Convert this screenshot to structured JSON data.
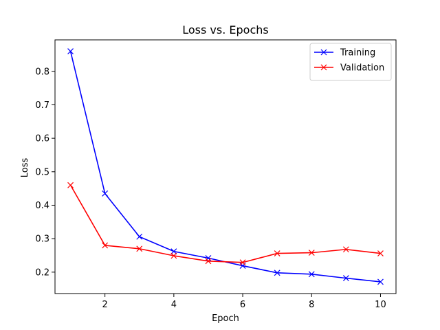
{
  "chart_data": {
    "type": "line",
    "title": "Loss vs. Epochs",
    "xlabel": "Epoch",
    "ylabel": "Loss",
    "x": [
      1,
      2,
      3,
      4,
      5,
      6,
      7,
      8,
      9,
      10
    ],
    "xlim": [
      0.55,
      10.45
    ],
    "ylim": [
      0.136,
      0.894
    ],
    "xticks": [
      2,
      4,
      6,
      8,
      10
    ],
    "yticks": [
      0.2,
      0.3,
      0.4,
      0.5,
      0.6,
      0.7,
      0.8
    ],
    "grid": false,
    "legend_position": "top-right",
    "marker": "x",
    "series": [
      {
        "name": "Training",
        "color": "#0000ff",
        "values": [
          0.86,
          0.435,
          0.306,
          0.262,
          0.242,
          0.219,
          0.198,
          0.194,
          0.182,
          0.171
        ]
      },
      {
        "name": "Validation",
        "color": "#ff0000",
        "values": [
          0.46,
          0.28,
          0.27,
          0.249,
          0.233,
          0.229,
          0.256,
          0.258,
          0.268,
          0.256
        ]
      }
    ]
  }
}
